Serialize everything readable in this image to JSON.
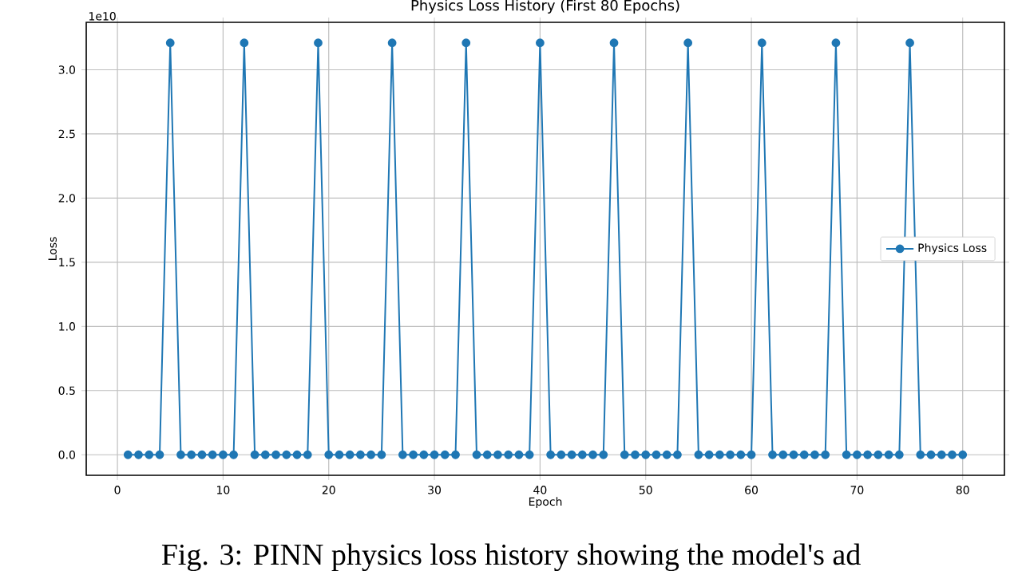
{
  "chart_data": {
    "type": "line",
    "title": "Physics Loss History (First 80 Epochs)",
    "xlabel": "Epoch",
    "ylabel": "Loss",
    "x": [
      1,
      2,
      3,
      4,
      5,
      6,
      7,
      8,
      9,
      10,
      11,
      12,
      13,
      14,
      15,
      16,
      17,
      18,
      19,
      20,
      21,
      22,
      23,
      24,
      25,
      26,
      27,
      28,
      29,
      30,
      31,
      32,
      33,
      34,
      35,
      36,
      37,
      38,
      39,
      40,
      41,
      42,
      43,
      44,
      45,
      46,
      47,
      48,
      49,
      50,
      51,
      52,
      53,
      54,
      55,
      56,
      57,
      58,
      59,
      60,
      61,
      62,
      63,
      64,
      65,
      66,
      67,
      68,
      69,
      70,
      71,
      72,
      73,
      74,
      75,
      76,
      77,
      78,
      79,
      80
    ],
    "series": [
      {
        "name": "Physics Loss",
        "color": "#1f77b4",
        "values": [
          0,
          0,
          0,
          0,
          3.21,
          0,
          0,
          0,
          0,
          0,
          0,
          3.21,
          0,
          0,
          0,
          0,
          0,
          0,
          3.21,
          0,
          0,
          0,
          0,
          0,
          0,
          3.21,
          0,
          0,
          0,
          0,
          0,
          0,
          3.21,
          0,
          0,
          0,
          0,
          0,
          0,
          3.21,
          0,
          0,
          0,
          0,
          0,
          0,
          3.21,
          0,
          0,
          0,
          0,
          0,
          0,
          3.21,
          0,
          0,
          0,
          0,
          0,
          0,
          3.21,
          0,
          0,
          0,
          0,
          0,
          0,
          3.21,
          0,
          0,
          0,
          0,
          0,
          0,
          3.21,
          0,
          0,
          0,
          0,
          0
        ]
      }
    ],
    "xlim": [
      -2.95,
      83.95
    ],
    "ylim": [
      -0.16,
      3.37
    ],
    "xticks": [
      0,
      10,
      20,
      30,
      40,
      50,
      60,
      70,
      80
    ],
    "yticks": [
      {
        "value": 0,
        "label": "0.0"
      },
      0.5,
      {
        "value": 1,
        "label": "1.0"
      },
      1.5,
      {
        "value": 2,
        "label": "2.0"
      },
      2.5,
      {
        "value": 3,
        "label": "3.0"
      }
    ],
    "annotations": [
      "1e10",
      "Fig. 3: PINN physics loss history showing the model's ad"
    ],
    "grid": true,
    "legend": "right",
    "marker": "circle",
    "line_style": "solid"
  }
}
